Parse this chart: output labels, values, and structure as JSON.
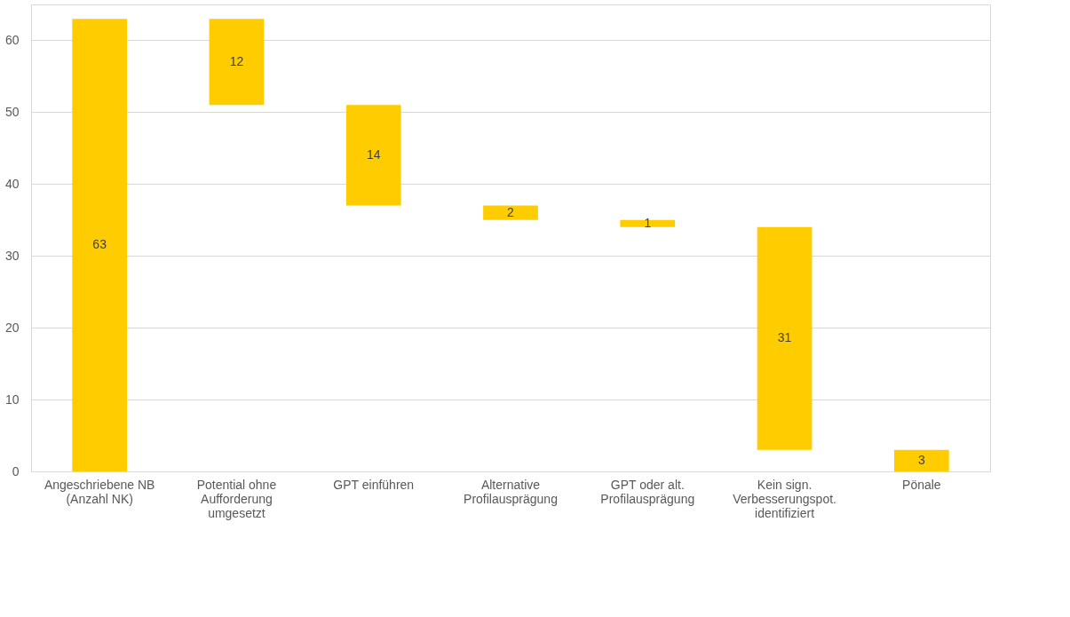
{
  "chart_data": {
    "type": "bar",
    "categories": [
      "Angeschriebene NB (Anzahl NK)",
      "Potential ohne Aufforderung umgesetzt",
      "GPT einführen",
      "Alternative Profilausprägung",
      "GPT oder alt. Profilausprägung",
      "Kein sign. Verbesserungspot. identifiziert",
      "Pönale"
    ],
    "values": [
      63,
      12,
      14,
      2,
      1,
      31,
      3
    ],
    "base": [
      0,
      51,
      37,
      35,
      34,
      3,
      0
    ],
    "color": "#ffcc00",
    "data_labels": true,
    "ylim": [
      0,
      65
    ],
    "yticks": [
      0,
      10,
      20,
      30,
      40,
      50,
      60
    ],
    "grid": "y"
  }
}
